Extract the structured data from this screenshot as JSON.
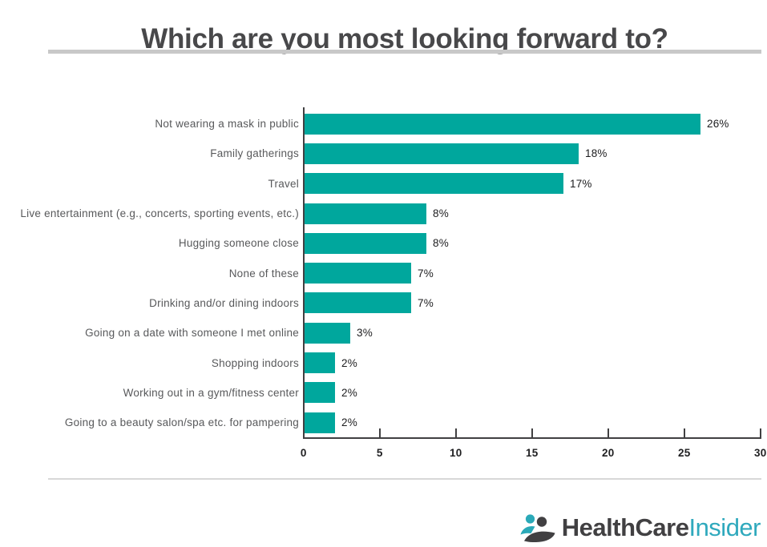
{
  "title": "Which are you most looking forward to?",
  "chart_data": {
    "type": "bar",
    "orientation": "horizontal",
    "title": "Which are you most looking forward to?",
    "categories": [
      "Not wearing a mask in public",
      "Family gatherings",
      "Travel",
      "Live entertainment (e.g., concerts, sporting events, etc.)",
      "Hugging someone close",
      "None of these",
      "Drinking and/or dining indoors",
      "Going on a date with someone I met online",
      "Shopping indoors",
      "Working out in a gym/fitness center",
      "Going to a beauty salon/spa etc. for pampering"
    ],
    "values": [
      26,
      18,
      17,
      8,
      8,
      7,
      7,
      3,
      2,
      2,
      2
    ],
    "value_labels": [
      "26%",
      "18%",
      "17%",
      "8%",
      "8%",
      "7%",
      "7%",
      "3%",
      "2%",
      "2%",
      "2%"
    ],
    "xlabel": "",
    "ylabel": "",
    "xlim": [
      0,
      30
    ],
    "x_ticks": [
      0,
      5,
      10,
      15,
      20,
      25,
      30
    ],
    "x_tick_labels": [
      "0",
      "5",
      "10",
      "15",
      "20",
      "25",
      "30"
    ],
    "grid": false,
    "legend": false,
    "bar_color": "#00a79d"
  },
  "footer": {
    "logo": {
      "icon": "people-icon",
      "part1": "HealthCare",
      "part2": "Insider"
    }
  },
  "colors": {
    "bar": "#00a79d",
    "title_text": "#48484a",
    "category_text": "#58595b",
    "value_text": "#1d1d1f",
    "axis": "#414042",
    "rule_top": "#c8c8c8",
    "rule_bottom": "#d8d8d8",
    "logo_dark": "#414042",
    "logo_teal": "#2fa9bd"
  }
}
